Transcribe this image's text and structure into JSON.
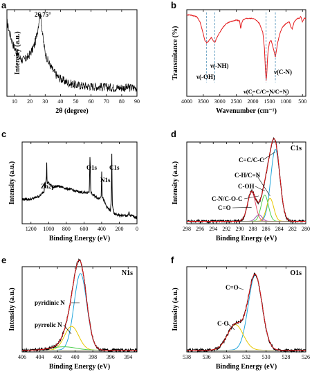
{
  "figure": {
    "colors": {
      "black": "#000000",
      "red": "#e41a1c",
      "envelope": "#c080c0",
      "blue": "#1fa5dc",
      "yellow": "#e8c800",
      "green": "#4ccf4c",
      "pink": "#e84b6b",
      "dash": "#4a8fb8",
      "purple": "#9a55b0"
    }
  },
  "chart_data": [
    {
      "panel": "a",
      "type": "line",
      "title": "",
      "xlabel": "2θ (degree)",
      "ylabel": "Intensity (a.u.)",
      "xlim": [
        5,
        90
      ],
      "ylim": [
        0,
        1
      ],
      "y_ticks_shown": false,
      "xticks": [
        10,
        20,
        30,
        40,
        50,
        60,
        70,
        80,
        90
      ],
      "annotations": [
        {
          "text": "26.75°",
          "x": 26.75
        }
      ],
      "series": [
        {
          "x": [
            5,
            7,
            9,
            11,
            13,
            15,
            17,
            19,
            21,
            22.5,
            24,
            25,
            26,
            26.75,
            27.5,
            28.5,
            30,
            32,
            35,
            38,
            42,
            46,
            50,
            55,
            60,
            65,
            70,
            75,
            80,
            85,
            90
          ],
          "y": [
            0.86,
            0.72,
            0.6,
            0.52,
            0.45,
            0.42,
            0.43,
            0.46,
            0.52,
            0.57,
            0.66,
            0.76,
            0.88,
            0.95,
            0.86,
            0.68,
            0.5,
            0.4,
            0.3,
            0.23,
            0.18,
            0.15,
            0.13,
            0.12,
            0.115,
            0.11,
            0.105,
            0.1,
            0.1,
            0.1,
            0.1
          ]
        }
      ]
    },
    {
      "panel": "b",
      "type": "line",
      "title": "",
      "xlabel": "Wavenumber (cm⁻¹)",
      "ylabel": "Transmitance (%)",
      "xlim": [
        4000,
        400
      ],
      "ylim": [
        0,
        1
      ],
      "x_reversed": true,
      "y_ticks_shown": false,
      "xticks": [
        4000,
        3500,
        3000,
        2500,
        2000,
        1500,
        1000,
        500
      ],
      "annotations": [
        {
          "text": "ν(-OH)",
          "x": 3400
        },
        {
          "text": "ν(-NH)",
          "x": 3150
        },
        {
          "text": "ν(C=C/C=N/C=N)",
          "x": 1600
        },
        {
          "text": "ν(C-N)",
          "x": 1320
        }
      ],
      "series": [
        {
          "x": [
            4000,
            3900,
            3800,
            3700,
            3600,
            3500,
            3450,
            3400,
            3350,
            3300,
            3250,
            3200,
            3150,
            3100,
            3000,
            2900,
            2800,
            2700,
            2600,
            2500,
            2400,
            2370,
            2340,
            2300,
            2200,
            2100,
            2000,
            1900,
            1800,
            1700,
            1650,
            1620,
            1600,
            1580,
            1560,
            1540,
            1500,
            1450,
            1400,
            1360,
            1320,
            1280,
            1250,
            1200,
            1150,
            1100,
            1000,
            900,
            850,
            810,
            780,
            750,
            700,
            650,
            600,
            550,
            500,
            450
          ],
          "y": [
            0.94,
            0.94,
            0.93,
            0.92,
            0.86,
            0.72,
            0.64,
            0.62,
            0.63,
            0.66,
            0.68,
            0.64,
            0.62,
            0.67,
            0.74,
            0.8,
            0.84,
            0.86,
            0.87,
            0.88,
            0.87,
            0.78,
            0.84,
            0.88,
            0.9,
            0.9,
            0.9,
            0.88,
            0.84,
            0.74,
            0.55,
            0.3,
            0.18,
            0.25,
            0.42,
            0.52,
            0.62,
            0.65,
            0.58,
            0.52,
            0.45,
            0.55,
            0.62,
            0.7,
            0.76,
            0.8,
            0.84,
            0.86,
            0.8,
            0.78,
            0.82,
            0.86,
            0.88,
            0.9,
            0.9,
            0.92,
            0.86,
            0.9
          ]
        }
      ]
    },
    {
      "panel": "c",
      "type": "line",
      "title": "",
      "xlabel": "Binding Energy (eV)",
      "ylabel": "Intensity (a.u.)",
      "xlim": [
        1300,
        0
      ],
      "ylim": [
        0,
        1
      ],
      "x_reversed": true,
      "y_ticks_shown": false,
      "xticks": [
        1200,
        1000,
        800,
        600,
        400,
        200,
        0
      ],
      "annotations": [
        {
          "text": "Zn2p",
          "x": 1022
        },
        {
          "text": "O1s",
          "x": 531
        },
        {
          "text": "N1s",
          "x": 399
        },
        {
          "text": "C1s",
          "x": 285
        }
      ],
      "series": [
        {
          "x": [
            1300,
            1250,
            1200,
            1150,
            1100,
            1050,
            1045,
            1040,
            1035,
            1025,
            1022,
            1018,
            1000,
            975,
            950,
            900,
            850,
            800,
            750,
            700,
            650,
            600,
            560,
            540,
            531,
            525,
            510,
            480,
            450,
            420,
            405,
            399,
            394,
            380,
            340,
            300,
            290,
            285,
            280,
            260,
            220,
            180,
            140,
            100,
            90,
            80,
            60,
            20,
            0
          ],
          "y": [
            0.3,
            0.3,
            0.3,
            0.32,
            0.34,
            0.4,
            0.55,
            0.45,
            0.5,
            0.55,
            0.8,
            0.5,
            0.5,
            0.47,
            0.45,
            0.46,
            0.45,
            0.43,
            0.42,
            0.4,
            0.39,
            0.38,
            0.38,
            0.4,
            0.88,
            0.4,
            0.36,
            0.34,
            0.32,
            0.31,
            0.35,
            0.66,
            0.33,
            0.3,
            0.2,
            0.16,
            0.3,
            0.88,
            0.25,
            0.12,
            0.11,
            0.1,
            0.1,
            0.1,
            0.14,
            0.1,
            0.1,
            0.08,
            0.08
          ]
        }
      ]
    },
    {
      "panel": "d",
      "type": "line",
      "title": "C1s",
      "xlabel": "Binding Energy (eV)",
      "ylabel": "Intensity (a.u.)",
      "xlim": [
        298,
        280
      ],
      "ylim": [
        0,
        1
      ],
      "x_reversed": true,
      "y_ticks_shown": false,
      "xticks": [
        298,
        296,
        294,
        292,
        290,
        288,
        286,
        284,
        282,
        280
      ],
      "annotations": [
        {
          "text": "C=C/C-C",
          "x": 284.6
        },
        {
          "text": "C-H/C=N",
          "x": 285.4
        },
        {
          "text": "C-OH",
          "x": 286.2
        },
        {
          "text": "C-N/C-O-C",
          "x": 287.1
        },
        {
          "text": "C=O",
          "x": 288.2
        }
      ],
      "peaks": [
        {
          "label": "C=C/C-C",
          "center": 284.6,
          "height": 0.88,
          "sigma": 0.7
        },
        {
          "label": "C-H/C=N",
          "center": 285.4,
          "height": 0.28,
          "sigma": 0.55
        },
        {
          "label": "C-OH",
          "center": 286.2,
          "height": 0.32,
          "sigma": 0.55
        },
        {
          "label": "C-N/C-O-C",
          "center": 287.1,
          "height": 0.08,
          "sigma": 0.5
        },
        {
          "label": "C=O",
          "center": 288.2,
          "height": 0.36,
          "sigma": 0.6
        }
      ],
      "baseline": 0.03
    },
    {
      "panel": "e",
      "type": "line",
      "title": "N1s",
      "xlabel": "Binding Energy (eV)",
      "ylabel": "Intensity (a.u.)",
      "xlim": [
        406,
        393
      ],
      "ylim": [
        0,
        1
      ],
      "x_reversed": true,
      "y_ticks_shown": false,
      "xticks": [
        406,
        404,
        402,
        400,
        398,
        396,
        394
      ],
      "annotations": [
        {
          "text": "pyridinic N",
          "x": 399.4
        },
        {
          "text": "pyrrolic N",
          "x": 400.4
        }
      ],
      "peaks": [
        {
          "label": "pyridinic N",
          "center": 399.4,
          "height": 0.9,
          "sigma": 0.72
        },
        {
          "label": "pyrrolic N",
          "center": 400.4,
          "height": 0.28,
          "sigma": 0.8
        },
        {
          "label": "",
          "center": 401.3,
          "height": 0.04,
          "sigma": 1.4
        }
      ],
      "baseline": 0.02
    },
    {
      "panel": "f",
      "type": "line",
      "title": "O1s",
      "xlabel": "Binding Energy (eV)",
      "ylabel": "Intensity (a.u.)",
      "xlim": [
        538,
        526
      ],
      "ylim": [
        0,
        1
      ],
      "x_reversed": true,
      "y_ticks_shown": false,
      "xticks": [
        538,
        536,
        534,
        532,
        530,
        528,
        526
      ],
      "annotations": [
        {
          "text": "C=O",
          "x": 531.1
        },
        {
          "text": "C-O",
          "x": 533.1
        }
      ],
      "peaks": [
        {
          "label": "C=O",
          "center": 531.1,
          "height": 0.88,
          "sigma": 0.7
        },
        {
          "label": "C-O",
          "center": 533.1,
          "height": 0.3,
          "sigma": 0.8
        }
      ],
      "baseline": 0.02
    }
  ]
}
